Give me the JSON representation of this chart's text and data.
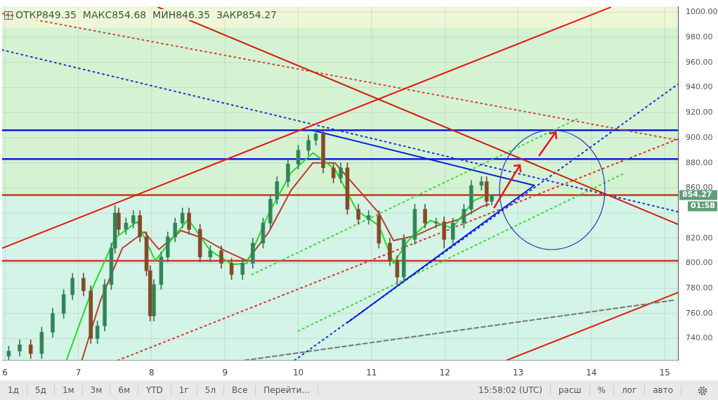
{
  "chart_data": {
    "type": "candlestick",
    "annotations": [
      "ОТКР849.35  МАКС854.68  МИН846.35  ЗАКР854.27",
      "01:58",
      "1д",
      "5д",
      "1м",
      "3м",
      "6м",
      "YTD",
      "1г",
      "5л",
      "Все",
      "Перейти...",
      "15:58:02 (UTC)",
      "расш",
      "%",
      "лог",
      "авто"
    ],
    "x": [
      6.05,
      6.2,
      6.35,
      6.5,
      6.65,
      6.8,
      6.92,
      7.07,
      7.17,
      7.26,
      7.36,
      7.45,
      7.5,
      7.55,
      7.65,
      7.75,
      7.84,
      7.93,
      7.98,
      8.03,
      8.13,
      8.22,
      8.32,
      8.42,
      8.51,
      8.66,
      8.8,
      8.95,
      9.09,
      9.24,
      9.38,
      9.52,
      9.62,
      9.71,
      9.86,
      10.0,
      10.14,
      10.24,
      10.34,
      10.48,
      10.58,
      10.67,
      10.82,
      10.96,
      11.1,
      11.25,
      11.35,
      11.44,
      11.59,
      11.73,
      11.88,
      11.99,
      12.11,
      12.26,
      12.36,
      12.5,
      12.57,
      12.64
    ],
    "ohlc": [
      [
        726,
        734,
        723,
        730
      ],
      [
        730,
        739,
        726,
        735
      ],
      [
        735,
        739,
        724,
        728
      ],
      [
        728,
        749,
        724,
        745
      ],
      [
        745,
        764,
        741,
        760
      ],
      [
        760,
        779,
        756,
        775
      ],
      [
        775,
        792,
        771,
        788
      ],
      [
        788,
        792,
        774,
        778
      ],
      [
        778,
        782,
        736,
        740
      ],
      [
        740,
        754,
        736,
        750
      ],
      [
        750,
        787,
        746,
        783
      ],
      [
        783,
        816,
        779,
        812
      ],
      [
        812,
        846,
        808,
        840
      ],
      [
        840,
        844,
        823,
        827
      ],
      [
        827,
        836,
        823,
        832
      ],
      [
        832,
        842,
        828,
        838
      ],
      [
        838,
        842,
        817,
        821
      ],
      [
        821,
        825,
        790,
        794
      ],
      [
        794,
        798,
        754,
        758
      ],
      [
        758,
        787,
        754,
        783
      ],
      [
        783,
        809,
        779,
        805
      ],
      [
        805,
        825,
        801,
        821
      ],
      [
        821,
        836,
        817,
        832
      ],
      [
        832,
        844,
        828,
        840
      ],
      [
        840,
        844,
        823,
        827
      ],
      [
        827,
        831,
        801,
        805
      ],
      [
        805,
        814,
        801,
        810
      ],
      [
        810,
        814,
        796,
        800
      ],
      [
        800,
        804,
        787,
        791
      ],
      [
        791,
        804,
        787,
        800
      ],
      [
        800,
        820,
        796,
        816
      ],
      [
        816,
        836,
        812,
        832
      ],
      [
        832,
        855,
        828,
        851
      ],
      [
        851,
        869,
        847,
        865
      ],
      [
        865,
        883,
        861,
        879
      ],
      [
        879,
        894,
        875,
        890
      ],
      [
        890,
        902,
        886,
        898
      ],
      [
        898,
        907,
        894,
        903
      ],
      [
        903,
        907,
        872,
        876
      ],
      [
        876,
        880,
        864,
        868
      ],
      [
        868,
        880,
        864,
        876
      ],
      [
        876,
        880,
        839,
        843
      ],
      [
        843,
        847,
        831,
        835
      ],
      [
        835,
        842,
        831,
        838
      ],
      [
        838,
        842,
        812,
        816
      ],
      [
        816,
        820,
        798,
        802
      ],
      [
        802,
        806,
        783,
        789
      ],
      [
        789,
        823,
        785,
        819
      ],
      [
        819,
        847,
        815,
        843
      ],
      [
        843,
        847,
        828,
        832
      ],
      [
        832,
        836,
        828,
        833
      ],
      [
        833,
        837,
        812,
        819
      ],
      [
        819,
        836,
        815,
        832
      ],
      [
        832,
        847,
        828,
        843
      ],
      [
        843,
        866,
        839,
        862
      ],
      [
        862,
        869,
        858,
        865
      ],
      [
        865,
        869,
        845,
        849.35
      ],
      [
        849.35,
        854.68,
        846.35,
        854.27
      ]
    ],
    "series": [
      {
        "type": "line",
        "color": "#22dd22",
        "line_style": "solid",
        "x": [
          6.84,
          7.2,
          7.5,
          7.8,
          8.05,
          8.3,
          8.5,
          8.8,
          9.1,
          9.3,
          9.6,
          9.9,
          10.2,
          10.5,
          10.8,
          11.1,
          11.3,
          11.5,
          11.8,
          12.1,
          12.4,
          12.52
        ],
        "values": [
          723,
          781,
          820,
          833,
          802,
          821,
          835,
          810,
          799,
          800,
          840,
          872,
          888,
          875,
          842,
          830,
          800,
          818,
          834,
          828,
          850,
          853
        ]
      },
      {
        "type": "line",
        "color": "#c0392b",
        "line_style": "solid",
        "x": [
          7.05,
          7.3,
          7.6,
          7.9,
          8.1,
          8.4,
          8.7,
          9.0,
          9.3,
          9.6,
          9.9,
          10.2,
          10.5,
          10.8,
          11.1,
          11.3,
          11.6,
          11.9,
          12.2,
          12.5,
          12.6
        ],
        "values": [
          723,
          770,
          812,
          825,
          811,
          826,
          820,
          810,
          802,
          825,
          858,
          880,
          880,
          860,
          840,
          818,
          822,
          830,
          835,
          845,
          847
        ]
      },
      {
        "type": "line",
        "color": "#e8180c",
        "line_style": "solid",
        "x": [
          5.96,
          14.26
        ],
        "values": [
          812,
          1004
        ]
      },
      {
        "type": "line",
        "color": "#d0200c",
        "line_style": "solid",
        "x": [
          8.09,
          15.18
        ],
        "values": [
          1004,
          831
        ]
      },
      {
        "type": "line",
        "color": "#d04a30",
        "line_style": "dotted",
        "x": [
          5.96,
          15.18
        ],
        "values": [
          999,
          898
        ]
      },
      {
        "type": "line",
        "color": "#2233cc",
        "line_style": "dotted",
        "x": [
          5.96,
          15.18
        ],
        "values": [
          970,
          841
        ]
      },
      {
        "type": "line",
        "color": "#0a1ee0",
        "line_style": "solid",
        "x": [
          10.19,
          13.22,
          10.67
        ],
        "values": [
          906,
          862,
          752.6
        ]
      },
      {
        "type": "line",
        "color": "#1a2ee0",
        "line_style": "dotted",
        "x": [
          9.95,
          15.18
        ],
        "values": [
          722.6,
          942.7
        ]
      },
      {
        "type": "line",
        "color": "#e0302a",
        "line_style": "dotted",
        "x": [
          7.54,
          15.18
        ],
        "values": [
          722.6,
          899
        ]
      },
      {
        "type": "line",
        "color": "#33dd33",
        "line_style": "dotted",
        "x": [
          9.37,
          13.84
        ],
        "values": [
          791,
          916
        ]
      },
      {
        "type": "line",
        "color": "#33dd33",
        "line_style": "dotted",
        "x": [
          10.0,
          14.46
        ],
        "values": [
          746,
          872
        ]
      },
      {
        "type": "line",
        "color": "#777777",
        "line_style": "dashed",
        "x": [
          9.27,
          15.13
        ],
        "values": [
          722.6,
          770.6
        ]
      },
      {
        "type": "line",
        "color": "#e0200c",
        "line_style": "solid",
        "x": [
          12.84,
          15.18
        ],
        "values": [
          722.6,
          776.6
        ]
      }
    ],
    "xlim": [
      5.96,
      15.18
    ],
    "xticks": [
      6,
      7,
      8,
      9,
      10,
      11,
      12,
      13,
      14,
      15
    ],
    "ylim": [
      722.6,
      1004.4
    ],
    "yticks": [
      {
        "value": 740,
        "label": "740.00"
      },
      {
        "value": 760,
        "label": "760.00"
      },
      {
        "value": 780,
        "label": "780.00"
      },
      {
        "value": 800,
        "label": "800.00"
      },
      {
        "value": 820,
        "label": "820.00"
      },
      {
        "value": 840,
        "label": null
      },
      {
        "value": 860,
        "label": "860.00"
      },
      {
        "value": 880,
        "label": "880.00"
      },
      {
        "value": 900,
        "label": "900.00"
      },
      {
        "value": 920,
        "label": "920.00"
      },
      {
        "value": 940,
        "label": "940.00"
      },
      {
        "value": 960,
        "label": "960.00"
      },
      {
        "value": 980,
        "label": "980.00"
      },
      {
        "value": 1000,
        "label": "1000.00"
      }
    ],
    "ref_lines": [
      {
        "axis": "y",
        "value": 906,
        "color": "#0a1ee0"
      },
      {
        "axis": "y",
        "value": 883,
        "color": "#0a1ee0"
      },
      {
        "axis": "y",
        "value": 854.27,
        "label": "854.27",
        "color": "#b5401c"
      },
      {
        "axis": "y",
        "value": 802,
        "color": "#d32f2f"
      }
    ],
    "bands": [
      {
        "axis": "y",
        "from": 722.6,
        "to": 854.27,
        "color": "#d3f4e6"
      },
      {
        "axis": "y",
        "from": 854.27,
        "to": 988,
        "color": "#d5f3d3"
      },
      {
        "axis": "y",
        "from": 988,
        "to": 1004.4,
        "color": "#eef6d6"
      }
    ],
    "grid": true,
    "legend": false
  }
}
